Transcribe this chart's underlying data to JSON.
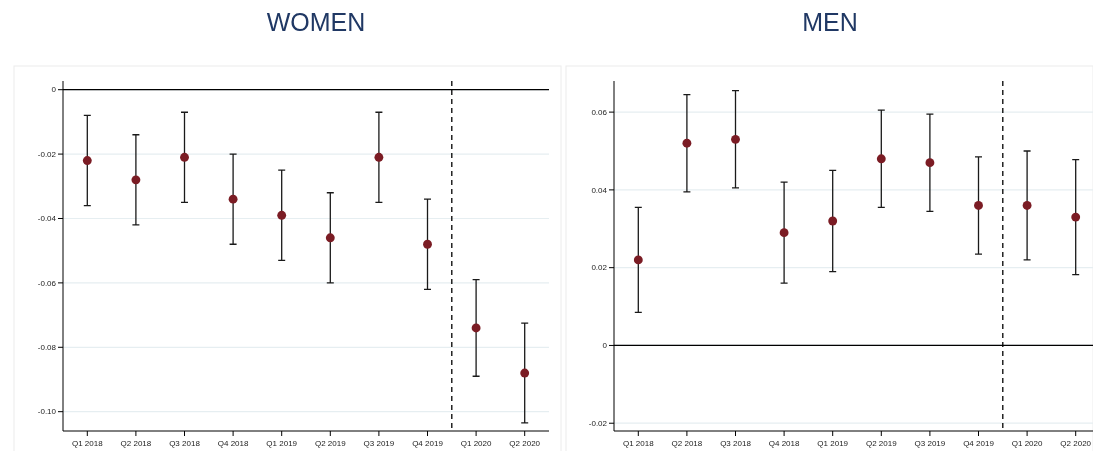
{
  "chart_data": [
    {
      "type": "scatter",
      "title": "WOMEN",
      "categories": [
        "Q1 2018",
        "Q2 2018",
        "Q3 2018",
        "Q4 2018",
        "Q1 2019",
        "Q2 2019",
        "Q3 2019",
        "Q4 2019",
        "Q1 2020",
        "Q2 2020"
      ],
      "values": [
        -0.022,
        -0.028,
        -0.021,
        -0.034,
        -0.039,
        -0.046,
        -0.021,
        -0.048,
        -0.074,
        -0.088
      ],
      "errors": [
        0.014,
        0.014,
        0.014,
        0.014,
        0.014,
        0.014,
        0.014,
        0.014,
        0.015,
        0.0155
      ],
      "color": "#7b1c24",
      "marker": "circle",
      "ylim": [
        -0.106,
        0.0027
      ],
      "yticks": [
        0,
        -0.02,
        -0.04,
        -0.06,
        -0.08,
        {
          "value": -0.1,
          "label": "-0.10"
        }
      ],
      "grid": "y",
      "ref_lines": [
        {
          "axis": "y",
          "value": 0,
          "color": "#000000",
          "line_style": "solid"
        }
      ]
    },
    {
      "type": "scatter",
      "title": "MEN",
      "categories": [
        "Q1 2018",
        "Q2 2018",
        "Q3 2018",
        "Q4 2018",
        "Q1 2019",
        "Q2 2019",
        "Q3 2019",
        "Q4 2019",
        "Q1 2020",
        "Q2 2020"
      ],
      "values": [
        0.022,
        0.052,
        0.053,
        0.029,
        0.032,
        0.048,
        0.047,
        0.036,
        0.036,
        0.033
      ],
      "errors": [
        0.0135,
        0.0125,
        0.0125,
        0.013,
        0.013,
        0.0125,
        0.0125,
        0.0125,
        0.014,
        0.0148
      ],
      "color": "#7b1c24",
      "marker": "circle",
      "ylim": [
        -0.022,
        0.068
      ],
      "yticks": [
        0.06,
        0.04,
        0.02,
        0,
        -0.02
      ],
      "grid": "y",
      "ref_lines": [
        {
          "axis": "y",
          "value": 0,
          "color": "#000000",
          "line_style": "solid"
        }
      ]
    }
  ]
}
